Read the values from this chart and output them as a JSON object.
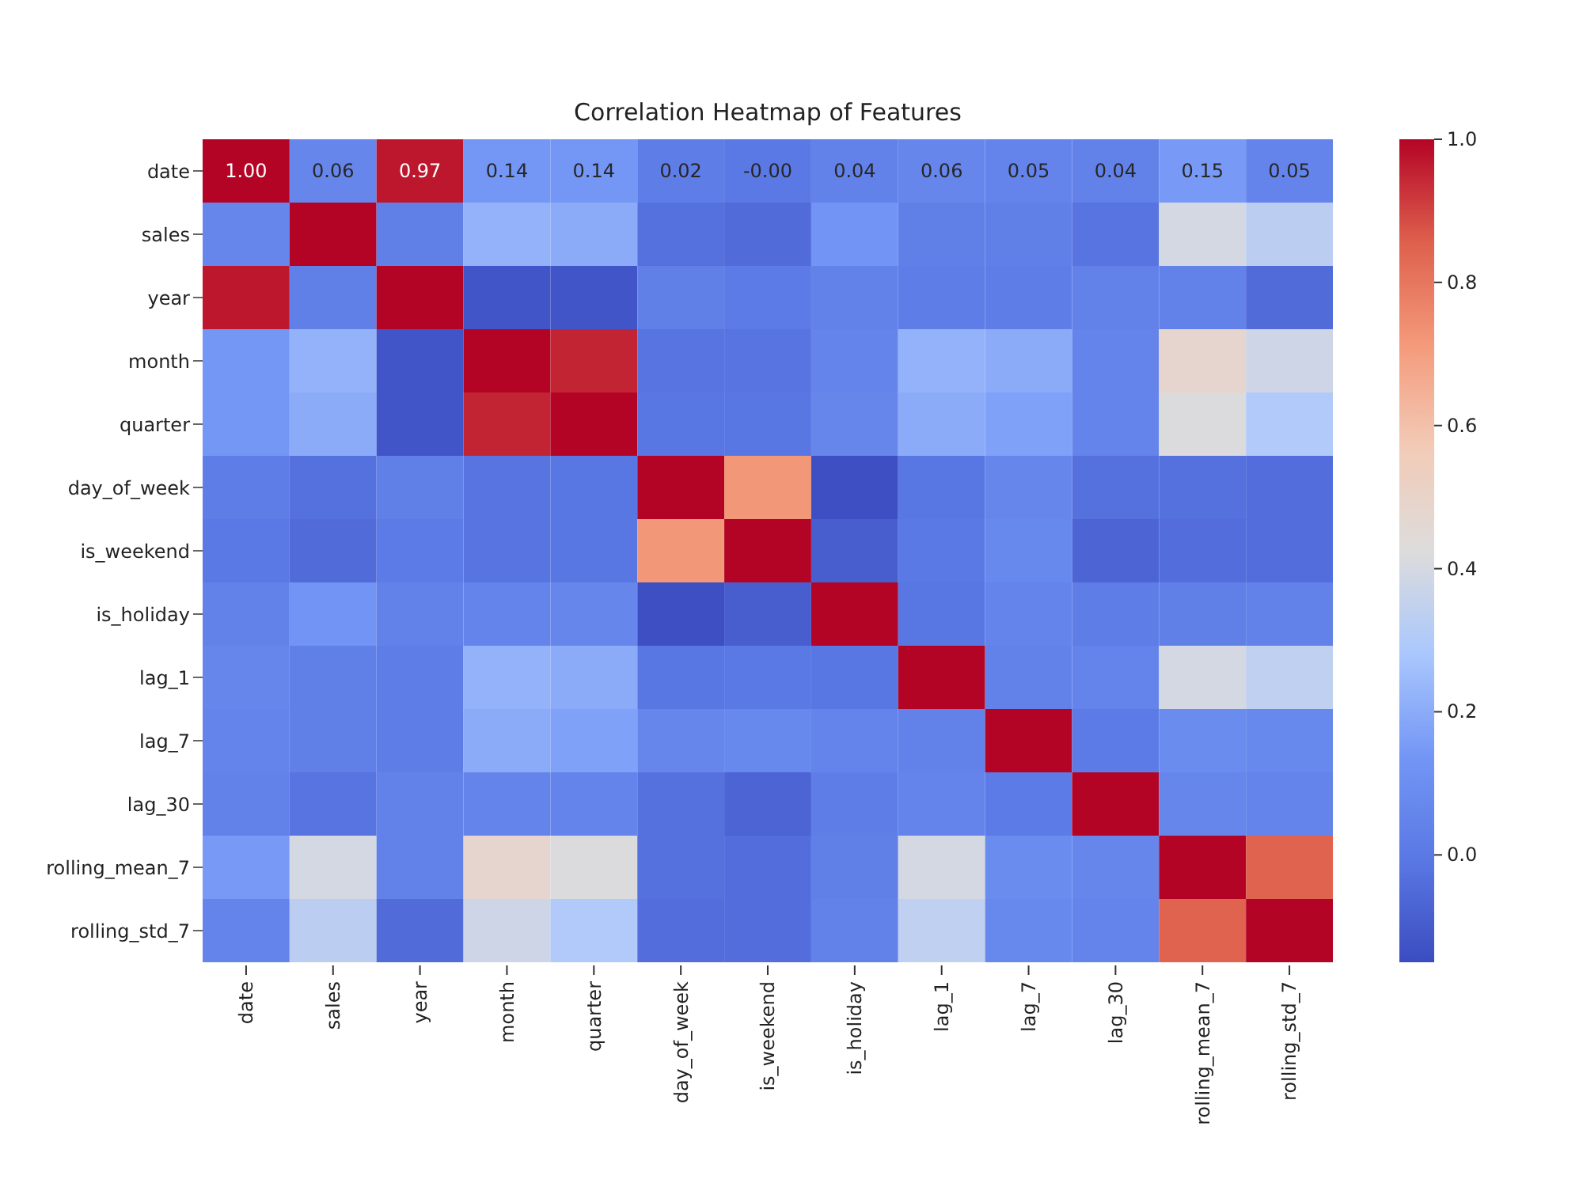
{
  "chart_data": {
    "type": "heatmap",
    "title": "Correlation Heatmap of Features",
    "categories": [
      "date",
      "sales",
      "year",
      "month",
      "quarter",
      "day_of_week",
      "is_weekend",
      "is_holiday",
      "lag_1",
      "lag_7",
      "lag_30",
      "rolling_mean_7",
      "rolling_std_7"
    ],
    "y_categories": [
      "date",
      "sales",
      "year",
      "month",
      "quarter",
      "day_of_week",
      "is_weekend",
      "is_holiday",
      "lag_1",
      "lag_7",
      "lag_30",
      "rolling_mean_7",
      "rolling_std_7"
    ],
    "cells": [
      [
        1,
        0.06,
        0.97,
        0.14,
        0.14,
        0.02,
        0,
        0.04,
        0.06,
        0.05,
        0.04,
        0.15,
        0.05
      ],
      [
        0.06,
        1,
        0.03,
        0.22,
        0.2,
        -0.03,
        -0.05,
        0.13,
        0.03,
        0.03,
        -0.02,
        0.4,
        0.33
      ],
      [
        0.97,
        0.03,
        1,
        -0.12,
        -0.12,
        0.03,
        0.01,
        0.04,
        0.02,
        0.02,
        0.04,
        0.04,
        -0.05
      ],
      [
        0.14,
        0.22,
        -0.12,
        1,
        0.95,
        -0.02,
        -0.02,
        0.05,
        0.22,
        0.2,
        0.05,
        0.48,
        0.38
      ],
      [
        0.14,
        0.2,
        -0.12,
        0.95,
        1,
        -0.01,
        -0.01,
        0.06,
        0.2,
        0.17,
        0.05,
        0.42,
        0.3
      ],
      [
        0.02,
        -0.03,
        0.03,
        -0.02,
        -0.01,
        1,
        0.72,
        -0.14,
        -0.01,
        0.06,
        -0.03,
        -0.03,
        -0.04
      ],
      [
        0,
        -0.05,
        0.01,
        -0.02,
        -0.01,
        0.72,
        1,
        -0.09,
        0,
        0.07,
        -0.07,
        -0.04,
        -0.04
      ],
      [
        0.04,
        0.13,
        0.04,
        0.05,
        0.06,
        -0.14,
        -0.09,
        1,
        -0.01,
        0.05,
        0.02,
        0.03,
        0.04
      ],
      [
        0.06,
        0.03,
        0.02,
        0.22,
        0.2,
        -0.01,
        0,
        -0.01,
        1,
        0.04,
        0.05,
        0.4,
        0.34
      ],
      [
        0.05,
        0.03,
        0.02,
        0.2,
        0.17,
        0.06,
        0.07,
        0.05,
        0.04,
        1,
        0.01,
        0.09,
        0.07
      ],
      [
        0.04,
        -0.02,
        0.04,
        0.05,
        0.05,
        -0.03,
        -0.07,
        0.02,
        0.05,
        0.01,
        1,
        0.06,
        0.05
      ],
      [
        0.15,
        0.4,
        0.04,
        0.48,
        0.42,
        -0.03,
        -0.04,
        0.03,
        0.4,
        0.09,
        0.06,
        1,
        0.85
      ],
      [
        0.05,
        0.33,
        -0.05,
        0.38,
        0.3,
        -0.04,
        -0.04,
        0.04,
        0.34,
        0.07,
        0.05,
        0.85,
        1
      ]
    ],
    "cell_labels": [
      [
        "1.00",
        "0.06",
        "0.97",
        "0.14",
        "0.14",
        "0.02",
        "-0.00",
        "0.04",
        "0.06",
        "0.05",
        "0.04",
        "0.15",
        "0.05"
      ],
      [
        null,
        null,
        null,
        null,
        null,
        null,
        null,
        null,
        null,
        null,
        null,
        null,
        null
      ],
      [
        null,
        null,
        null,
        null,
        null,
        null,
        null,
        null,
        null,
        null,
        null,
        null,
        null
      ],
      [
        null,
        null,
        null,
        null,
        null,
        null,
        null,
        null,
        null,
        null,
        null,
        null,
        null
      ],
      [
        null,
        null,
        null,
        null,
        null,
        null,
        null,
        null,
        null,
        null,
        null,
        null,
        null
      ],
      [
        null,
        null,
        null,
        null,
        null,
        null,
        null,
        null,
        null,
        null,
        null,
        null,
        null
      ],
      [
        null,
        null,
        null,
        null,
        null,
        null,
        null,
        null,
        null,
        null,
        null,
        null,
        null
      ],
      [
        null,
        null,
        null,
        null,
        null,
        null,
        null,
        null,
        null,
        null,
        null,
        null,
        null
      ],
      [
        null,
        null,
        null,
        null,
        null,
        null,
        null,
        null,
        null,
        null,
        null,
        null,
        null
      ],
      [
        null,
        null,
        null,
        null,
        null,
        null,
        null,
        null,
        null,
        null,
        null,
        null,
        null
      ],
      [
        null,
        null,
        null,
        null,
        null,
        null,
        null,
        null,
        null,
        null,
        null,
        null,
        null
      ],
      [
        null,
        null,
        null,
        null,
        null,
        null,
        null,
        null,
        null,
        null,
        null,
        null,
        null
      ],
      [
        null,
        null,
        null,
        null,
        null,
        null,
        null,
        null,
        null,
        null,
        null,
        null,
        null
      ]
    ],
    "clim": [
      -0.15,
      1
    ],
    "cticks": [
      {
        "value": 0,
        "label": "0.0"
      },
      {
        "value": 0.2,
        "label": "0.2"
      },
      {
        "value": 0.4,
        "label": "0.4"
      },
      {
        "value": 0.6,
        "label": "0.6"
      },
      {
        "value": 0.8,
        "label": "0.8"
      },
      {
        "value": 1,
        "label": "1.0"
      }
    ]
  }
}
